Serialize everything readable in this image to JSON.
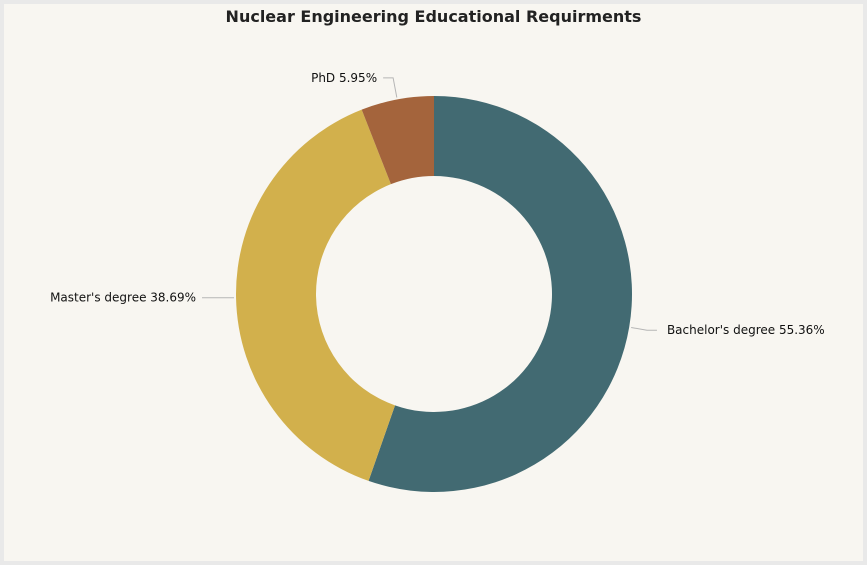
{
  "chart_data": {
    "type": "pie",
    "variant": "donut",
    "title": "Nuclear Engineering Educational Requirments",
    "slices": [
      {
        "label": "Bachelor's degree",
        "value": 55.36,
        "value_text": "55.36%",
        "color": "#426a72"
      },
      {
        "label": "Master's degree",
        "value": 38.69,
        "value_text": "38.69%",
        "color": "#d2b04c"
      },
      {
        "label": "PhD",
        "value": 5.95,
        "value_text": "5.95%",
        "color": "#a4643c"
      }
    ],
    "start_angle": "12 o'clock",
    "direction": "clockwise",
    "legend": "none",
    "background": "#f8f6f1"
  }
}
